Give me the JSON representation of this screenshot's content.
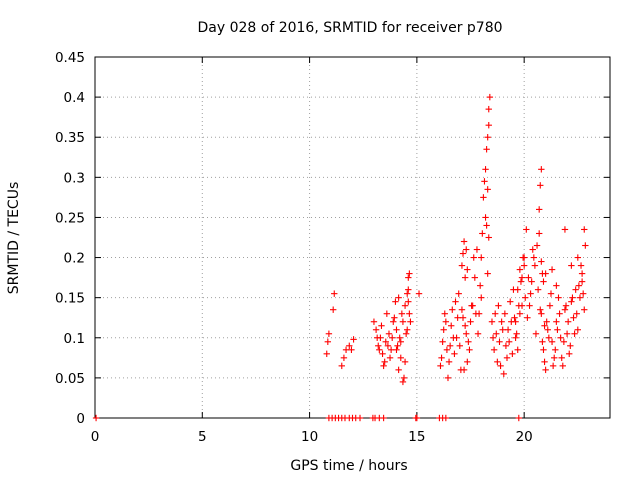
{
  "chart_data": {
    "type": "scatter",
    "title": "Day 028 of 2016, SRMTID for receiver p780",
    "xlabel": "GPS time / hours",
    "ylabel": "SRMTID / TECUs",
    "xlim": [
      0,
      24
    ],
    "ylim": [
      0,
      0.45
    ],
    "xticks": [
      0,
      5,
      10,
      15,
      20
    ],
    "xtick_labels": [
      "0",
      "5",
      "10",
      "15",
      "20"
    ],
    "yticks": [
      0,
      0.05,
      0.1,
      0.15,
      0.2,
      0.25,
      0.3,
      0.35,
      0.4,
      0.45
    ],
    "ytick_labels": [
      "0",
      "0.05",
      "0.1",
      "0.15",
      "0.2",
      "0.25",
      "0.3",
      "0.35",
      "0.4",
      "0.45"
    ],
    "grid": true,
    "marker": "plus",
    "color": "#ff0000",
    "series": [
      {
        "name": "SRMTID",
        "x": [
          0.05,
          10.9,
          11.05,
          11.2,
          11.35,
          11.5,
          11.65,
          11.85,
          12.0,
          12.15,
          12.35,
          12.95,
          13.05,
          13.25,
          13.45,
          14.95,
          15.0,
          16.05,
          16.2,
          16.35,
          19.75,
          10.8,
          10.85,
          10.9,
          11.1,
          11.15,
          11.5,
          11.6,
          11.7,
          11.85,
          11.95,
          12.05,
          13.0,
          13.1,
          13.2,
          13.3,
          13.4,
          13.5,
          13.55,
          13.6,
          13.7,
          13.8,
          13.9,
          14.0,
          14.05,
          14.1,
          14.15,
          14.2,
          14.25,
          14.3,
          14.35,
          14.4,
          14.45,
          14.5,
          14.55,
          14.6,
          14.65,
          13.15,
          13.25,
          13.35,
          13.45,
          13.65,
          13.75,
          13.85,
          13.95,
          14.05,
          14.15,
          14.25,
          14.35,
          14.45,
          14.55,
          14.6,
          14.6,
          14.65,
          14.7,
          15.1,
          16.1,
          16.2,
          16.3,
          16.4,
          16.5,
          16.6,
          16.7,
          16.8,
          16.9,
          17.0,
          17.1,
          17.2,
          17.3,
          17.4,
          17.5,
          17.6,
          17.7,
          17.8,
          17.9,
          18.0,
          16.15,
          16.25,
          16.35,
          16.45,
          16.55,
          16.65,
          16.75,
          16.85,
          16.95,
          17.05,
          17.15,
          17.25,
          17.35,
          17.45,
          17.55,
          17.65,
          17.75,
          17.85,
          17.95,
          17.1,
          17.15,
          17.2,
          17.25,
          17.3,
          17.35,
          18.0,
          18.05,
          18.1,
          18.15,
          18.2,
          18.25,
          18.3,
          18.35,
          18.4,
          18.2,
          18.25,
          18.3,
          18.35,
          18.3,
          18.35,
          18.5,
          18.6,
          18.7,
          18.8,
          18.9,
          19.0,
          19.1,
          19.2,
          19.3,
          19.4,
          19.5,
          19.6,
          19.7,
          19.8,
          19.9,
          20.0,
          18.55,
          18.65,
          18.75,
          18.85,
          18.95,
          19.05,
          19.15,
          19.25,
          19.35,
          19.45,
          19.55,
          19.65,
          19.75,
          19.85,
          19.95,
          19.6,
          19.7,
          19.8,
          19.9,
          20.0,
          20.1,
          20.2,
          20.3,
          20.4,
          20.5,
          20.6,
          20.7,
          20.8,
          20.9,
          21.0,
          20.05,
          20.15,
          20.25,
          20.35,
          20.45,
          20.55,
          20.65,
          20.75,
          20.85,
          20.95,
          20.7,
          20.75,
          20.8,
          20.8,
          20.9,
          21.0,
          21.1,
          21.2,
          21.3,
          21.4,
          21.5,
          21.6,
          21.7,
          21.8,
          21.9,
          22.0,
          22.1,
          22.2,
          22.3,
          22.4,
          22.5,
          22.6,
          22.7,
          22.8,
          20.85,
          20.95,
          21.05,
          21.15,
          21.25,
          21.35,
          21.45,
          21.55,
          21.65,
          21.75,
          21.85,
          21.95,
          22.05,
          22.15,
          22.25,
          22.35,
          22.45,
          22.55,
          22.65,
          22.75,
          21.3,
          21.5,
          21.9,
          22.2,
          22.5,
          22.7,
          22.8,
          22.85
        ],
        "y": [
          0.0,
          0.0,
          0.0,
          0.0,
          0.0,
          0.0,
          0.0,
          0.0,
          0.0,
          0.0,
          0.0,
          0.0,
          0.0,
          0.0,
          0.0,
          0.0,
          0.0,
          0.0,
          0.0,
          0.0,
          0.0,
          0.08,
          0.095,
          0.105,
          0.135,
          0.155,
          0.065,
          0.075,
          0.085,
          0.09,
          0.085,
          0.098,
          0.12,
          0.11,
          0.09,
          0.1,
          0.08,
          0.07,
          0.095,
          0.13,
          0.105,
          0.085,
          0.12,
          0.145,
          0.11,
          0.09,
          0.15,
          0.1,
          0.075,
          0.13,
          0.12,
          0.05,
          0.14,
          0.105,
          0.155,
          0.145,
          0.13,
          0.1,
          0.085,
          0.115,
          0.065,
          0.09,
          0.075,
          0.1,
          0.125,
          0.085,
          0.06,
          0.095,
          0.045,
          0.07,
          0.11,
          0.16,
          0.175,
          0.18,
          0.12,
          0.155,
          0.065,
          0.095,
          0.13,
          0.085,
          0.07,
          0.115,
          0.1,
          0.145,
          0.125,
          0.09,
          0.135,
          0.06,
          0.105,
          0.095,
          0.12,
          0.14,
          0.175,
          0.21,
          0.13,
          0.15,
          0.075,
          0.11,
          0.12,
          0.05,
          0.09,
          0.135,
          0.08,
          0.1,
          0.155,
          0.06,
          0.125,
          0.115,
          0.07,
          0.085,
          0.14,
          0.2,
          0.13,
          0.105,
          0.165,
          0.19,
          0.205,
          0.22,
          0.175,
          0.21,
          0.185,
          0.2,
          0.23,
          0.275,
          0.295,
          0.31,
          0.335,
          0.35,
          0.365,
          0.4,
          0.25,
          0.24,
          0.285,
          0.385,
          0.18,
          0.225,
          0.12,
          0.085,
          0.105,
          0.14,
          0.065,
          0.11,
          0.13,
          0.075,
          0.095,
          0.12,
          0.16,
          0.1,
          0.085,
          0.13,
          0.175,
          0.19,
          0.1,
          0.13,
          0.07,
          0.095,
          0.12,
          0.055,
          0.09,
          0.11,
          0.145,
          0.08,
          0.125,
          0.105,
          0.14,
          0.17,
          0.2,
          0.12,
          0.16,
          0.185,
          0.14,
          0.2,
          0.235,
          0.175,
          0.155,
          0.21,
          0.19,
          0.215,
          0.23,
          0.195,
          0.17,
          0.18,
          0.15,
          0.125,
          0.14,
          0.17,
          0.2,
          0.105,
          0.16,
          0.135,
          0.18,
          0.115,
          0.26,
          0.29,
          0.31,
          0.13,
          0.085,
          0.06,
          0.11,
          0.14,
          0.095,
          0.075,
          0.12,
          0.15,
          0.1,
          0.065,
          0.135,
          0.105,
          0.08,
          0.145,
          0.125,
          0.16,
          0.11,
          0.15,
          0.17,
          0.135,
          0.095,
          0.07,
          0.12,
          0.1,
          0.155,
          0.065,
          0.085,
          0.11,
          0.13,
          0.075,
          0.095,
          0.14,
          0.12,
          0.09,
          0.15,
          0.105,
          0.13,
          0.165,
          0.19,
          0.155,
          0.185,
          0.165,
          0.235,
          0.19,
          0.2,
          0.18,
          0.235,
          0.215
        ]
      }
    ]
  }
}
